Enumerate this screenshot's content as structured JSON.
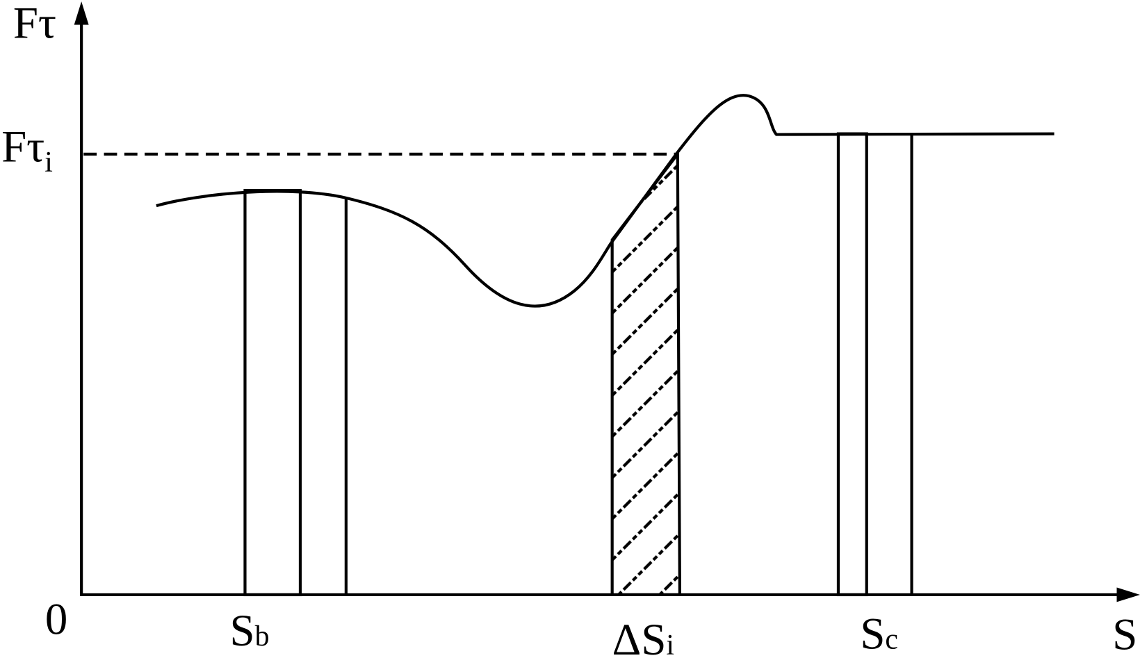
{
  "origin": "0",
  "y_axis_label": {
    "base": "F",
    "sub": "τ"
  },
  "reference_level": {
    "base": "F",
    "sub": "τ",
    "index": "i"
  },
  "x_axis_label": "S",
  "interval_labels": [
    {
      "base": "S",
      "sub": "b"
    },
    {
      "base": "ΔS",
      "sub": "i"
    },
    {
      "base": "S",
      "sub": "c"
    }
  ]
}
